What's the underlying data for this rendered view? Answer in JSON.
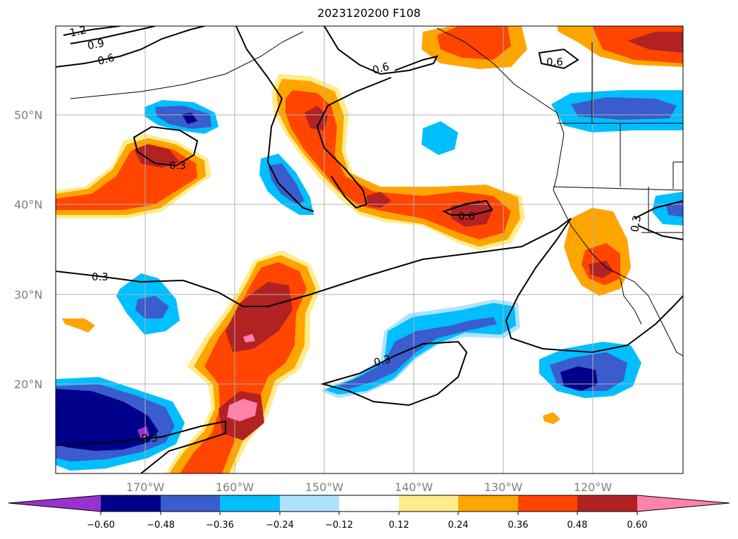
{
  "title": "2023120200 F108",
  "map": {
    "lat_labels": [
      "50°N",
      "40°N",
      "30°N",
      "20°N"
    ],
    "lon_labels": [
      "170°W",
      "160°W",
      "150°W",
      "140°W",
      "130°W",
      "120°W"
    ],
    "contour_labels": [
      "1.2",
      "0.9",
      "0.6",
      "0.6",
      "0.6",
      "0.3",
      "0.6",
      "0.3",
      "0.3",
      "0.3",
      "0.3"
    ]
  },
  "colorbar": {
    "colors": [
      "#9932cc",
      "#00008b",
      "#3a5ccc",
      "#00bfff",
      "#b0e2ff",
      "#ffffff",
      "#ffec8b",
      "#ffa500",
      "#ff4500",
      "#b22222",
      "#ff82ab"
    ],
    "tick_labels": [
      "−0.60",
      "−0.48",
      "−0.36",
      "−0.24",
      "−0.12",
      "0.12",
      "0.24",
      "0.36",
      "0.48",
      "0.60"
    ]
  }
}
